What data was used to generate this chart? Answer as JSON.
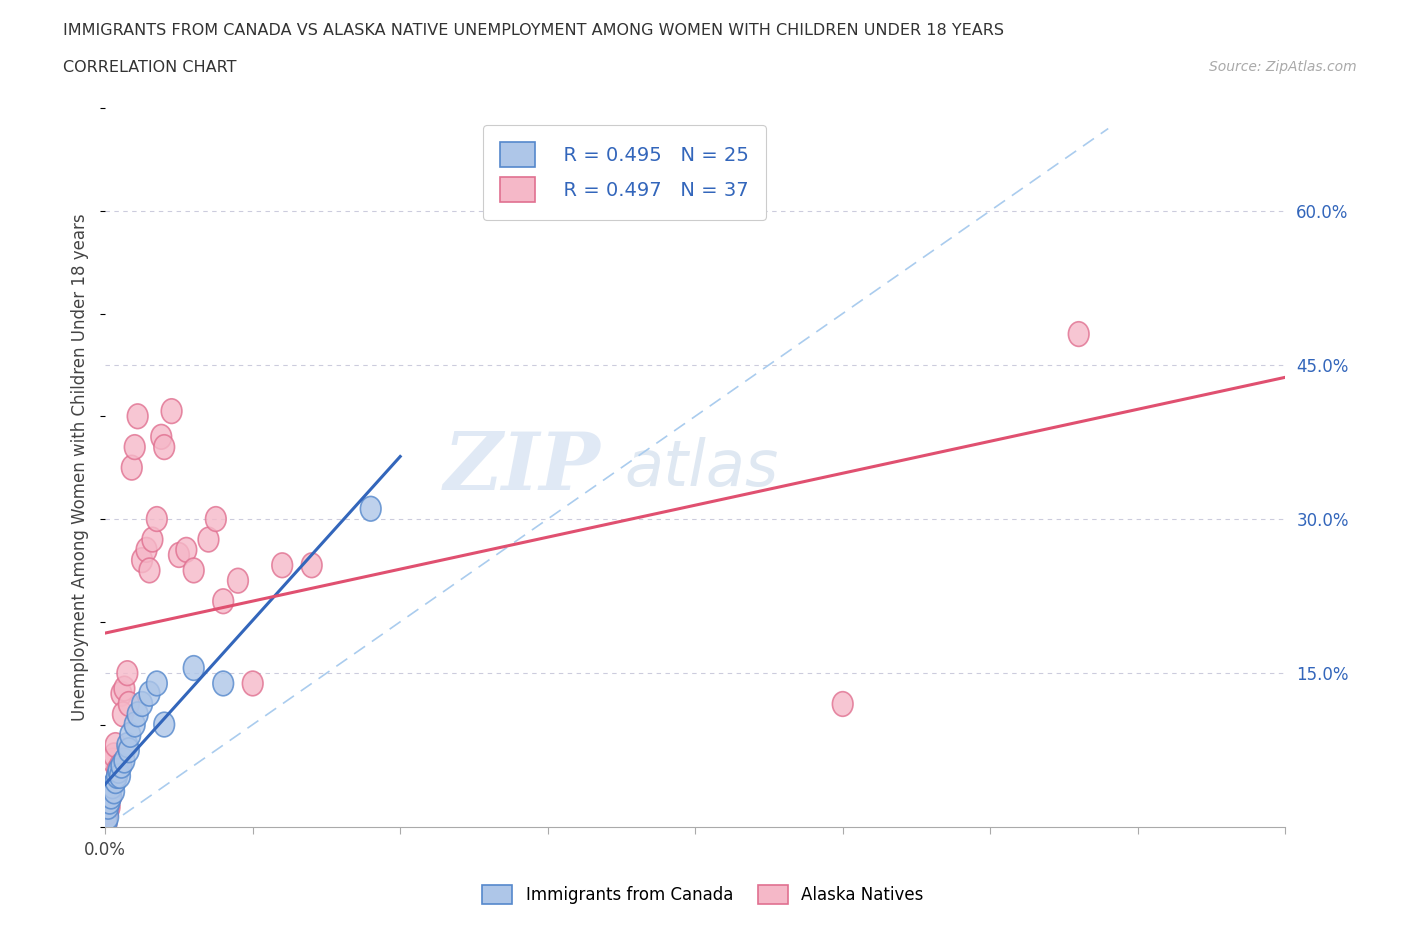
{
  "title": "IMMIGRANTS FROM CANADA VS ALASKA NATIVE UNEMPLOYMENT AMONG WOMEN WITH CHILDREN UNDER 18 YEARS",
  "subtitle": "CORRELATION CHART",
  "source": "Source: ZipAtlas.com",
  "ylabel": "Unemployment Among Women with Children Under 18 years",
  "xlim": [
    0.0,
    0.8
  ],
  "ylim": [
    0.0,
    0.7
  ],
  "xtick_vals": [
    0.0,
    0.1,
    0.2,
    0.3,
    0.4,
    0.5,
    0.6,
    0.7,
    0.8
  ],
  "xtick_labels_shown": {
    "0.0": "0.0%"
  },
  "ytick_vals_right": [
    0.15,
    0.3,
    0.45,
    0.6
  ],
  "ytick_labels_right": [
    "15.0%",
    "30.0%",
    "45.0%",
    "60.0%"
  ],
  "canada_color": "#aec6e8",
  "alaska_color": "#f5b8c8",
  "canada_edge": "#5588cc",
  "alaska_edge": "#e07090",
  "trendline_canada_color": "#3366bb",
  "trendline_alaska_color": "#e05070",
  "diagonal_color": "#aaccee",
  "legend_R_canada": "R = 0.495",
  "legend_N_canada": "N = 25",
  "legend_R_alaska": "R = 0.497",
  "legend_N_alaska": "N = 37",
  "legend_label_canada": "Immigrants from Canada",
  "legend_label_alaska": "Alaska Natives",
  "watermark_zip": "ZIP",
  "watermark_atlas": "atlas",
  "canada_x": [
    0.001,
    0.002,
    0.002,
    0.003,
    0.004,
    0.005,
    0.006,
    0.007,
    0.008,
    0.009,
    0.01,
    0.011,
    0.013,
    0.015,
    0.016,
    0.017,
    0.02,
    0.022,
    0.025,
    0.03,
    0.035,
    0.04,
    0.06,
    0.08,
    0.18
  ],
  "canada_y": [
    0.005,
    0.01,
    0.02,
    0.025,
    0.03,
    0.04,
    0.035,
    0.045,
    0.05,
    0.055,
    0.05,
    0.06,
    0.065,
    0.08,
    0.075,
    0.09,
    0.1,
    0.11,
    0.12,
    0.13,
    0.14,
    0.1,
    0.155,
    0.14,
    0.31
  ],
  "alaska_x": [
    0.001,
    0.002,
    0.003,
    0.004,
    0.005,
    0.006,
    0.007,
    0.008,
    0.01,
    0.011,
    0.012,
    0.013,
    0.015,
    0.016,
    0.018,
    0.02,
    0.022,
    0.025,
    0.028,
    0.03,
    0.032,
    0.035,
    0.038,
    0.04,
    0.045,
    0.05,
    0.055,
    0.06,
    0.07,
    0.075,
    0.08,
    0.09,
    0.1,
    0.12,
    0.14,
    0.5,
    0.66
  ],
  "alaska_y": [
    0.005,
    0.015,
    0.02,
    0.03,
    0.065,
    0.07,
    0.08,
    0.055,
    0.06,
    0.13,
    0.11,
    0.135,
    0.15,
    0.12,
    0.35,
    0.37,
    0.4,
    0.26,
    0.27,
    0.25,
    0.28,
    0.3,
    0.38,
    0.37,
    0.405,
    0.265,
    0.27,
    0.25,
    0.28,
    0.3,
    0.22,
    0.24,
    0.14,
    0.255,
    0.255,
    0.12,
    0.48
  ]
}
